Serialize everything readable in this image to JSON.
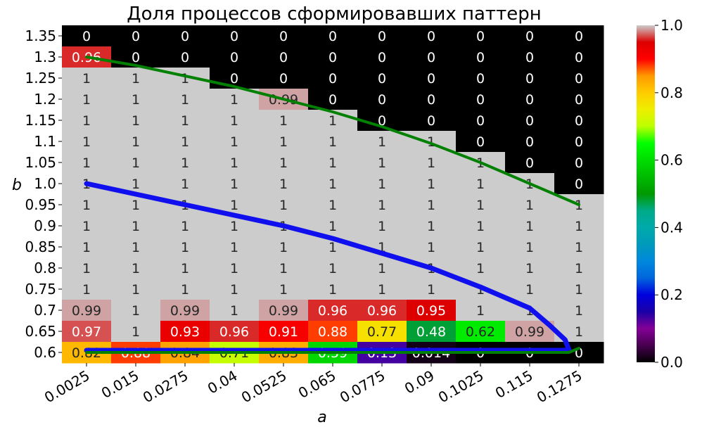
{
  "chart_data": {
    "type": "heatmap",
    "title": "Доля процессов сформировавших паттерн",
    "xlabel": "a",
    "ylabel": "b",
    "x_categories": [
      "0.0025",
      "0.015",
      "0.0275",
      "0.04",
      "0.0525",
      "0.065",
      "0.0775",
      "0.09",
      "0.1025",
      "0.115",
      "0.1275"
    ],
    "y_categories": [
      "1.35",
      "1.3",
      "1.25",
      "1.2",
      "1.15",
      "1.1",
      "1.05",
      "1.0",
      "0.95",
      "0.9",
      "0.85",
      "0.8",
      "0.75",
      "0.7",
      "0.65",
      "0.6"
    ],
    "values": [
      [
        0,
        0,
        0,
        0,
        0,
        0,
        0,
        0,
        0,
        0,
        0
      ],
      [
        0.96,
        0,
        0,
        0,
        0,
        0,
        0,
        0,
        0,
        0,
        0
      ],
      [
        1,
        1,
        1,
        0,
        0,
        0,
        0,
        0,
        0,
        0,
        0
      ],
      [
        1,
        1,
        1,
        1,
        0.99,
        0,
        0,
        0,
        0,
        0,
        0
      ],
      [
        1,
        1,
        1,
        1,
        1,
        1,
        0,
        0,
        0,
        0,
        0
      ],
      [
        1,
        1,
        1,
        1,
        1,
        1,
        1,
        1,
        0,
        0,
        0
      ],
      [
        1,
        1,
        1,
        1,
        1,
        1,
        1,
        1,
        1,
        0,
        0
      ],
      [
        1,
        1,
        1,
        1,
        1,
        1,
        1,
        1,
        1,
        1,
        0
      ],
      [
        1,
        1,
        1,
        1,
        1,
        1,
        1,
        1,
        1,
        1,
        1
      ],
      [
        1,
        1,
        1,
        1,
        1,
        1,
        1,
        1,
        1,
        1,
        1
      ],
      [
        1,
        1,
        1,
        1,
        1,
        1,
        1,
        1,
        1,
        1,
        1
      ],
      [
        1,
        1,
        1,
        1,
        1,
        1,
        1,
        1,
        1,
        1,
        1
      ],
      [
        1,
        1,
        1,
        1,
        1,
        1,
        1,
        1,
        1,
        1,
        1
      ],
      [
        0.99,
        1,
        0.99,
        1,
        0.99,
        0.96,
        0.96,
        0.95,
        1,
        1,
        1
      ],
      [
        0.97,
        1,
        0.93,
        0.96,
        0.91,
        0.88,
        0.77,
        0.48,
        0.62,
        0.99,
        1
      ],
      [
        0.82,
        0.88,
        0.84,
        0.71,
        0.83,
        0.59,
        0.13,
        0.014,
        0,
        0,
        0
      ]
    ],
    "value_labels": [
      [
        "0",
        "0",
        "0",
        "0",
        "0",
        "0",
        "0",
        "0",
        "0",
        "0",
        "0"
      ],
      [
        "0.96",
        "0",
        "0",
        "0",
        "0",
        "0",
        "0",
        "0",
        "0",
        "0",
        "0"
      ],
      [
        "1",
        "1",
        "1",
        "0",
        "0",
        "0",
        "0",
        "0",
        "0",
        "0",
        "0"
      ],
      [
        "1",
        "1",
        "1",
        "1",
        "0.99",
        "0",
        "0",
        "0",
        "0",
        "0",
        "0"
      ],
      [
        "1",
        "1",
        "1",
        "1",
        "1",
        "1",
        "0",
        "0",
        "0",
        "0",
        "0"
      ],
      [
        "1",
        "1",
        "1",
        "1",
        "1",
        "1",
        "1",
        "1",
        "0",
        "0",
        "0"
      ],
      [
        "1",
        "1",
        "1",
        "1",
        "1",
        "1",
        "1",
        "1",
        "1",
        "0",
        "0"
      ],
      [
        "1",
        "1",
        "1",
        "1",
        "1",
        "1",
        "1",
        "1",
        "1",
        "1",
        "0"
      ],
      [
        "1",
        "1",
        "1",
        "1",
        "1",
        "1",
        "1",
        "1",
        "1",
        "1",
        "1"
      ],
      [
        "1",
        "1",
        "1",
        "1",
        "1",
        "1",
        "1",
        "1",
        "1",
        "1",
        "1"
      ],
      [
        "1",
        "1",
        "1",
        "1",
        "1",
        "1",
        "1",
        "1",
        "1",
        "1",
        "1"
      ],
      [
        "1",
        "1",
        "1",
        "1",
        "1",
        "1",
        "1",
        "1",
        "1",
        "1",
        "1"
      ],
      [
        "1",
        "1",
        "1",
        "1",
        "1",
        "1",
        "1",
        "1",
        "1",
        "1",
        "1"
      ],
      [
        "0.99",
        "1",
        "0.99",
        "1",
        "0.99",
        "0.96",
        "0.96",
        "0.95",
        "1",
        "1",
        "1"
      ],
      [
        "0.97",
        "1",
        "0.93",
        "0.96",
        "0.91",
        "0.88",
        "0.77",
        "0.48",
        "0.62",
        "0.99",
        "1"
      ],
      [
        "0.82",
        "0.88",
        "0.84",
        "0.71",
        "0.83",
        "0.59",
        "0.13",
        "0.014",
        "0",
        "0",
        "0"
      ]
    ],
    "colorbar": {
      "colormap": "nipy_spectral",
      "range": [
        0,
        1
      ],
      "ticks": [
        "0.0",
        "0.2",
        "0.4",
        "0.6",
        "0.8",
        "1.0"
      ]
    },
    "curves": [
      {
        "color": "#1010ee",
        "points": [
          [
            0.0025,
            1.0
          ],
          [
            0.015,
            0.975
          ],
          [
            0.0275,
            0.95
          ],
          [
            0.04,
            0.925
          ],
          [
            0.0525,
            0.9
          ],
          [
            0.065,
            0.87
          ],
          [
            0.0775,
            0.835
          ],
          [
            0.09,
            0.8
          ],
          [
            0.1025,
            0.755
          ],
          [
            0.115,
            0.705
          ],
          [
            0.12,
            0.665
          ],
          [
            0.124,
            0.63
          ],
          [
            0.125,
            0.605
          ]
        ]
      },
      {
        "color": "#008000",
        "points": [
          [
            0.0025,
            1.3
          ],
          [
            0.015,
            1.28
          ],
          [
            0.0275,
            1.255
          ],
          [
            0.04,
            1.23
          ],
          [
            0.0525,
            1.2
          ],
          [
            0.065,
            1.17
          ],
          [
            0.0775,
            1.135
          ],
          [
            0.09,
            1.095
          ],
          [
            0.1025,
            1.05
          ],
          [
            0.115,
            1.0
          ],
          [
            0.1275,
            0.95
          ]
        ]
      },
      {
        "color": "#1010ee",
        "points": [
          [
            0.0025,
            0.605
          ],
          [
            0.125,
            0.605
          ]
        ]
      },
      {
        "color": "#008000",
        "points": [
          [
            0.0025,
            0.6
          ],
          [
            0.125,
            0.6
          ],
          [
            0.1275,
            0.61
          ]
        ]
      }
    ]
  }
}
